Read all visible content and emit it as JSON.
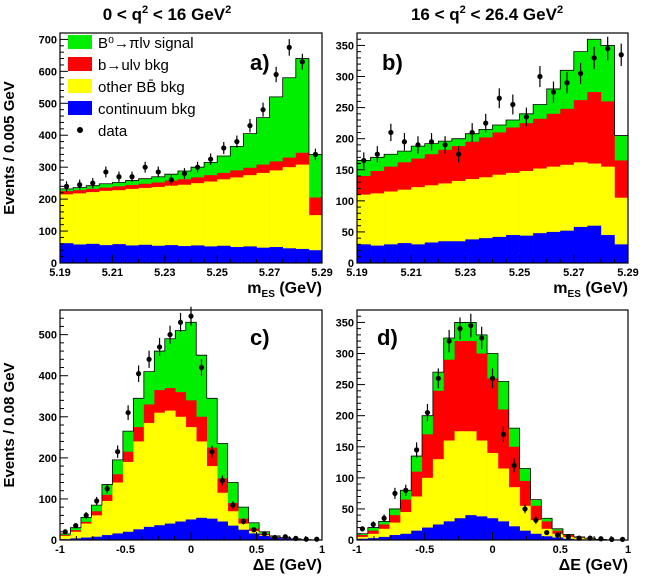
{
  "figure": {
    "col_titles": [
      {
        "pre": "0 < q",
        "sup": "2",
        "post": " < 16 GeV",
        "sup2": "2"
      },
      {
        "pre": "16 < q",
        "sup": "2",
        "post": " < 26.4 GeV",
        "sup2": "2"
      }
    ],
    "legend": [
      {
        "label": "B⁰→πlν signal",
        "color": "#00ee00",
        "kind": "box"
      },
      {
        "label": "b→ulν bkg",
        "color": "#ff0000",
        "kind": "box"
      },
      {
        "label": "other BB̄ bkg",
        "color": "#ffff00",
        "kind": "box"
      },
      {
        "label": "continuum bkg",
        "color": "#0000ff",
        "kind": "box"
      },
      {
        "label": "data",
        "color": "#000000",
        "kind": "point"
      }
    ]
  },
  "colors": {
    "signal": "#00ee00",
    "bulnu": "#ff0000",
    "otherbb": "#ffff00",
    "continuum": "#0000ff",
    "data": "#000000"
  },
  "chart_data": [
    {
      "type": "bar",
      "panel": "a)",
      "ylabel": "Events / 0.005 GeV",
      "xlabel": "m_ES (GeV)",
      "xlim": [
        5.19,
        5.29
      ],
      "ylim": [
        0,
        720
      ],
      "xticks": [
        "5.19",
        "5.21",
        "5.23",
        "5.25",
        "5.27",
        "5.29"
      ],
      "yticks": [
        "0",
        "100",
        "200",
        "300",
        "400",
        "500",
        "600",
        "700"
      ],
      "bin_edges": [
        5.19,
        5.195,
        5.2,
        5.205,
        5.21,
        5.215,
        5.22,
        5.225,
        5.23,
        5.235,
        5.24,
        5.245,
        5.25,
        5.255,
        5.26,
        5.265,
        5.27,
        5.275,
        5.28,
        5.285,
        5.29
      ],
      "continuum": [
        62,
        58,
        60,
        56,
        59,
        55,
        57,
        54,
        56,
        53,
        55,
        52,
        54,
        50,
        52,
        48,
        50,
        46,
        44,
        40
      ],
      "otherbb_top": [
        215,
        218,
        222,
        226,
        228,
        232,
        235,
        238,
        242,
        245,
        250,
        255,
        262,
        268,
        275,
        282,
        290,
        300,
        308,
        150
      ],
      "bulnu_top": [
        225,
        228,
        232,
        236,
        240,
        244,
        248,
        252,
        258,
        262,
        268,
        275,
        282,
        290,
        298,
        308,
        318,
        330,
        345,
        205
      ],
      "signal_top": [
        232,
        236,
        242,
        248,
        252,
        258,
        264,
        270,
        278,
        288,
        300,
        315,
        335,
        365,
        405,
        455,
        520,
        580,
        640,
        340
      ],
      "data_x": [
        5.1925,
        5.1975,
        5.2025,
        5.2075,
        5.2125,
        5.2175,
        5.2225,
        5.2275,
        5.2325,
        5.2375,
        5.2425,
        5.2475,
        5.2525,
        5.2575,
        5.2625,
        5.2675,
        5.2725,
        5.2775,
        5.2825,
        5.2875
      ],
      "data_y": [
        240,
        245,
        250,
        285,
        270,
        270,
        300,
        285,
        260,
        280,
        300,
        325,
        360,
        380,
        430,
        480,
        590,
        675,
        630,
        340
      ],
      "data_err": [
        16,
        16,
        16,
        17,
        16,
        16,
        17,
        17,
        16,
        17,
        17,
        18,
        19,
        19,
        21,
        22,
        24,
        26,
        25,
        18
      ]
    },
    {
      "type": "bar",
      "panel": "b)",
      "ylabel": "",
      "xlabel": "m_ES (GeV)",
      "xlim": [
        5.19,
        5.29
      ],
      "ylim": [
        0,
        370
      ],
      "xticks": [
        "5.19",
        "5.21",
        "5.23",
        "5.25",
        "5.27",
        "5.29"
      ],
      "yticks": [
        "0",
        "50",
        "100",
        "150",
        "200",
        "250",
        "300",
        "350"
      ],
      "bin_edges": [
        5.19,
        5.195,
        5.2,
        5.205,
        5.21,
        5.215,
        5.22,
        5.225,
        5.23,
        5.235,
        5.24,
        5.245,
        5.25,
        5.255,
        5.26,
        5.265,
        5.27,
        5.275,
        5.28,
        5.285,
        5.29
      ],
      "continuum": [
        30,
        28,
        30,
        32,
        30,
        33,
        35,
        35,
        38,
        40,
        42,
        45,
        44,
        48,
        50,
        52,
        58,
        60,
        45,
        30
      ],
      "otherbb_top": [
        110,
        112,
        115,
        118,
        122,
        125,
        128,
        132,
        135,
        138,
        142,
        145,
        148,
        152,
        155,
        158,
        162,
        160,
        155,
        105
      ],
      "bulnu_top": [
        140,
        148,
        155,
        162,
        168,
        175,
        182,
        188,
        195,
        202,
        210,
        218,
        225,
        232,
        240,
        248,
        262,
        275,
        260,
        165
      ],
      "signal_top": [
        165,
        170,
        175,
        180,
        188,
        192,
        196,
        200,
        208,
        215,
        222,
        230,
        240,
        255,
        280,
        310,
        340,
        360,
        350,
        205
      ],
      "data_x": [
        5.1925,
        5.1975,
        5.2025,
        5.2075,
        5.2125,
        5.2175,
        5.2225,
        5.2275,
        5.2325,
        5.2375,
        5.2425,
        5.2475,
        5.2525,
        5.2575,
        5.2625,
        5.2675,
        5.2725,
        5.2775,
        5.2825,
        5.2875
      ],
      "data_y": [
        165,
        175,
        210,
        195,
        190,
        195,
        190,
        175,
        210,
        225,
        265,
        255,
        235,
        300,
        275,
        290,
        305,
        330,
        345,
        335
      ],
      "data_err": [
        13,
        13,
        14,
        14,
        14,
        14,
        14,
        13,
        15,
        15,
        16,
        16,
        15,
        17,
        17,
        17,
        17,
        18,
        19,
        18
      ]
    },
    {
      "type": "bar",
      "panel": "c)",
      "ylabel": "Events / 0.08 GeV",
      "xlabel": "ΔE (GeV)",
      "xlim": [
        -1,
        1
      ],
      "ylim": [
        0,
        560
      ],
      "xticks": [
        "-1",
        "-0.5",
        "0",
        "0.5",
        "1"
      ],
      "yticks": [
        "0",
        "100",
        "200",
        "300",
        "400",
        "500"
      ],
      "bin_edges": [
        -1,
        -0.92,
        -0.84,
        -0.76,
        -0.68,
        -0.6,
        -0.52,
        -0.44,
        -0.36,
        -0.28,
        -0.2,
        -0.12,
        -0.04,
        0.04,
        0.12,
        0.2,
        0.28,
        0.36,
        0.44,
        0.52,
        0.6,
        0.68,
        0.76,
        0.84,
        0.92,
        1
      ],
      "continuum": [
        2,
        4,
        6,
        8,
        12,
        16,
        20,
        26,
        32,
        36,
        40,
        45,
        50,
        54,
        52,
        45,
        35,
        25,
        16,
        10,
        6,
        4,
        2,
        1,
        0
      ],
      "otherbb_top": [
        10,
        20,
        40,
        60,
        95,
        140,
        190,
        240,
        285,
        310,
        315,
        300,
        275,
        240,
        180,
        115,
        70,
        40,
        22,
        12,
        6,
        4,
        2,
        1,
        0
      ],
      "bulnu_top": [
        12,
        24,
        44,
        70,
        110,
        160,
        215,
        275,
        330,
        365,
        370,
        360,
        340,
        300,
        225,
        150,
        90,
        52,
        28,
        15,
        8,
        5,
        2,
        1,
        0
      ],
      "signal_top": [
        15,
        30,
        55,
        85,
        135,
        195,
        265,
        345,
        410,
        460,
        490,
        510,
        530,
        450,
        345,
        235,
        140,
        80,
        42,
        20,
        10,
        6,
        3,
        1,
        0
      ],
      "data_x": [
        -0.96,
        -0.88,
        -0.8,
        -0.72,
        -0.64,
        -0.56,
        -0.48,
        -0.4,
        -0.32,
        -0.24,
        -0.16,
        -0.08,
        0.0,
        0.08,
        0.16,
        0.24,
        0.32,
        0.4,
        0.48,
        0.56,
        0.64,
        0.72,
        0.8,
        0.88,
        0.96
      ],
      "data_y": [
        20,
        35,
        60,
        95,
        125,
        215,
        310,
        405,
        440,
        470,
        500,
        530,
        545,
        420,
        215,
        145,
        85,
        45,
        25,
        15,
        6,
        8,
        4,
        2,
        2
      ],
      "data_err": [
        5,
        6,
        8,
        10,
        11,
        15,
        18,
        20,
        21,
        22,
        22,
        23,
        23,
        20,
        15,
        12,
        9,
        7,
        5,
        4,
        2,
        3,
        2,
        1,
        1
      ]
    },
    {
      "type": "bar",
      "panel": "d)",
      "ylabel": "",
      "xlabel": "ΔE (GeV)",
      "xlim": [
        -1,
        1
      ],
      "ylim": [
        0,
        370
      ],
      "xticks": [
        "-1",
        "-0.5",
        "0",
        "0.5",
        "1"
      ],
      "yticks": [
        "0",
        "50",
        "100",
        "150",
        "200",
        "250",
        "300",
        "350"
      ],
      "bin_edges": [
        -1,
        -0.92,
        -0.84,
        -0.76,
        -0.68,
        -0.6,
        -0.52,
        -0.44,
        -0.36,
        -0.28,
        -0.2,
        -0.12,
        -0.04,
        0.04,
        0.12,
        0.2,
        0.28,
        0.36,
        0.44,
        0.52,
        0.6,
        0.68,
        0.76,
        0.84,
        0.92,
        1
      ],
      "continuum": [
        2,
        3,
        5,
        8,
        10,
        15,
        20,
        25,
        30,
        35,
        40,
        38,
        35,
        30,
        22,
        15,
        10,
        6,
        4,
        2,
        1,
        1,
        0,
        0,
        0
      ],
      "otherbb_top": [
        5,
        10,
        18,
        28,
        45,
        70,
        100,
        130,
        160,
        175,
        175,
        160,
        140,
        115,
        85,
        55,
        32,
        18,
        10,
        5,
        3,
        2,
        1,
        0,
        0
      ],
      "bulnu_top": [
        8,
        15,
        25,
        40,
        65,
        110,
        170,
        240,
        290,
        320,
        320,
        300,
        260,
        210,
        150,
        95,
        55,
        30,
        15,
        8,
        4,
        2,
        1,
        0,
        0
      ],
      "signal_top": [
        10,
        20,
        30,
        50,
        80,
        135,
        200,
        270,
        325,
        350,
        350,
        330,
        300,
        255,
        180,
        115,
        65,
        35,
        18,
        9,
        5,
        3,
        1,
        0,
        0
      ],
      "data_x": [
        -0.96,
        -0.88,
        -0.8,
        -0.72,
        -0.64,
        -0.56,
        -0.48,
        -0.4,
        -0.32,
        -0.24,
        -0.16,
        -0.08,
        0.0,
        0.08,
        0.16,
        0.24,
        0.32,
        0.4,
        0.48,
        0.56,
        0.64,
        0.72,
        0.8,
        0.88,
        0.96
      ],
      "data_y": [
        18,
        25,
        35,
        75,
        80,
        145,
        205,
        260,
        320,
        340,
        345,
        325,
        260,
        170,
        120,
        50,
        32,
        12,
        8,
        5,
        3,
        3,
        2,
        1,
        1
      ],
      "data_err": [
        4,
        5,
        6,
        9,
        9,
        12,
        14,
        16,
        18,
        18,
        19,
        18,
        16,
        13,
        11,
        7,
        6,
        3,
        3,
        2,
        2,
        2,
        1,
        1,
        1
      ]
    }
  ]
}
